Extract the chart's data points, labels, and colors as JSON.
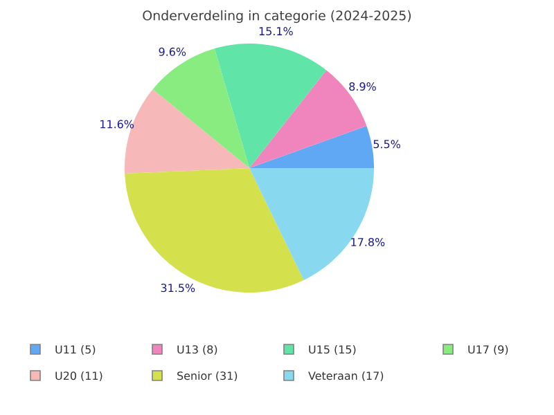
{
  "chart_data": {
    "type": "pie",
    "title": "Onderverdeling in categorie (2024-2025)",
    "categories": [
      "U11 (5)",
      "U13 (8)",
      "U15 (15)",
      "U17 (9)",
      "U20 (11)",
      "Senior (31)",
      "Veteraan (17)"
    ],
    "values": [
      5.5,
      8.9,
      15.1,
      9.6,
      11.6,
      31.5,
      17.8
    ],
    "value_labels": [
      "5.5%",
      "8.9%",
      "15.1%",
      "9.6%",
      "11.6%",
      "31.5%",
      "17.8%"
    ],
    "colors": [
      "#60a8f4",
      "#f084bc",
      "#60e4a8",
      "#88ec80",
      "#f6b8b8",
      "#d4e04c",
      "#88d8f0"
    ],
    "legend": "bottom"
  }
}
